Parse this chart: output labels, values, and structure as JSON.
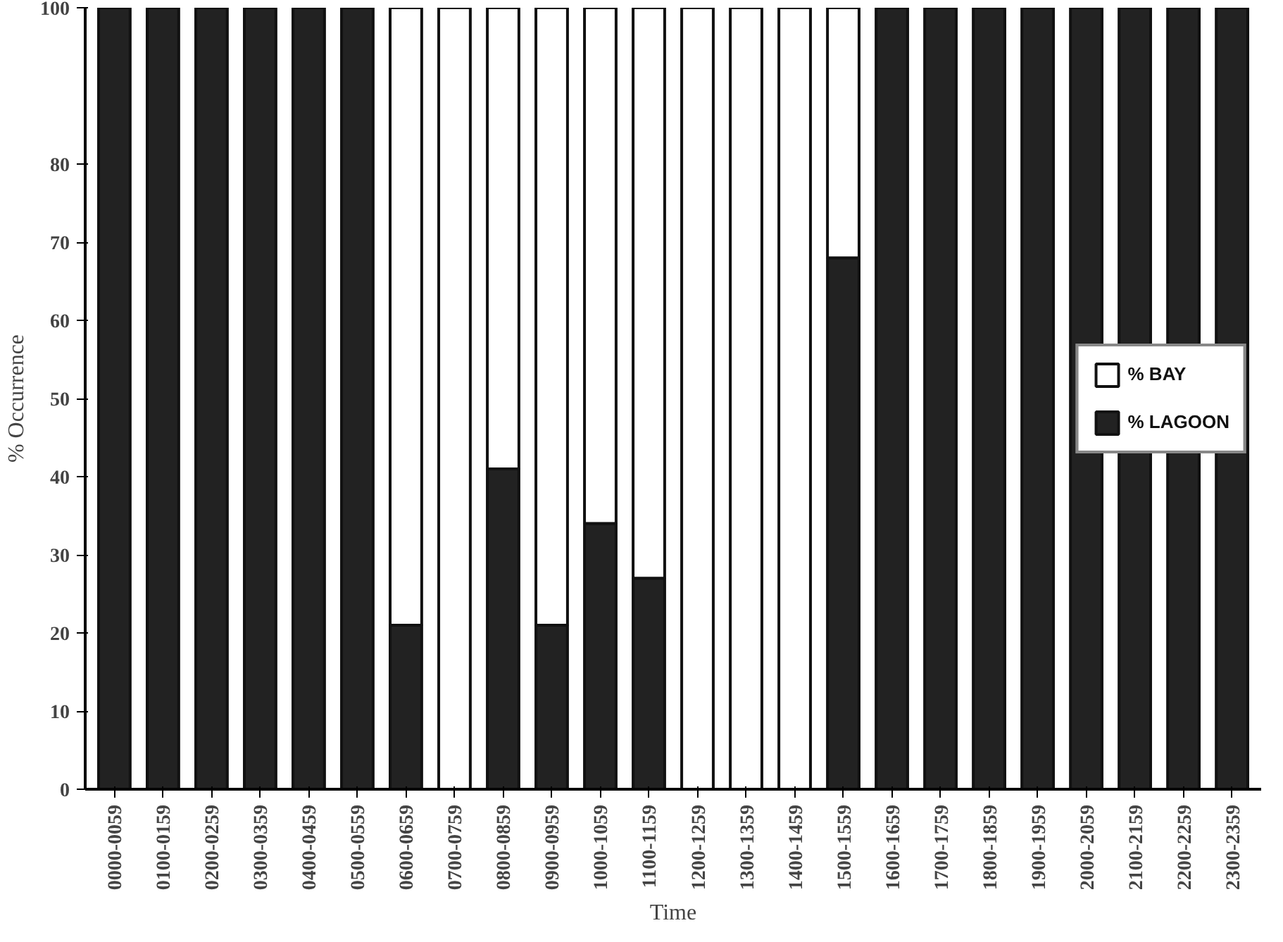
{
  "chart_data": {
    "type": "bar",
    "stacked": true,
    "xlabel": "Time",
    "ylabel": "% Occurrence",
    "categories": [
      "0000-0059",
      "0100-0159",
      "0200-0259",
      "0300-0359",
      "0400-0459",
      "0500-0559",
      "0600-0659",
      "0700-0759",
      "0800-0859",
      "0900-0959",
      "1000-1059",
      "1100-1159",
      "1200-1259",
      "1300-1359",
      "1400-1459",
      "1500-1559",
      "1600-1659",
      "1700-1759",
      "1800-1859",
      "1900-1959",
      "2000-2059",
      "2100-2159",
      "2200-2259",
      "2300-2359"
    ],
    "series": [
      {
        "name": "% LAGOON",
        "color": "#222222",
        "values": [
          100,
          100,
          100,
          100,
          100,
          100,
          21,
          0,
          41,
          21,
          34,
          27,
          0,
          0,
          0,
          68,
          100,
          100,
          100,
          100,
          100,
          100,
          100,
          100
        ]
      },
      {
        "name": "% BAY",
        "color": "#ffffff",
        "values": [
          0,
          0,
          0,
          0,
          0,
          0,
          79,
          100,
          59,
          79,
          66,
          73,
          100,
          100,
          100,
          32,
          0,
          0,
          0,
          0,
          0,
          0,
          0,
          0
        ]
      }
    ],
    "ylim": [
      0,
      100
    ],
    "yticks": [
      0,
      10,
      20,
      30,
      40,
      50,
      60,
      70,
      80,
      100
    ],
    "grid": false,
    "legend": "right"
  }
}
